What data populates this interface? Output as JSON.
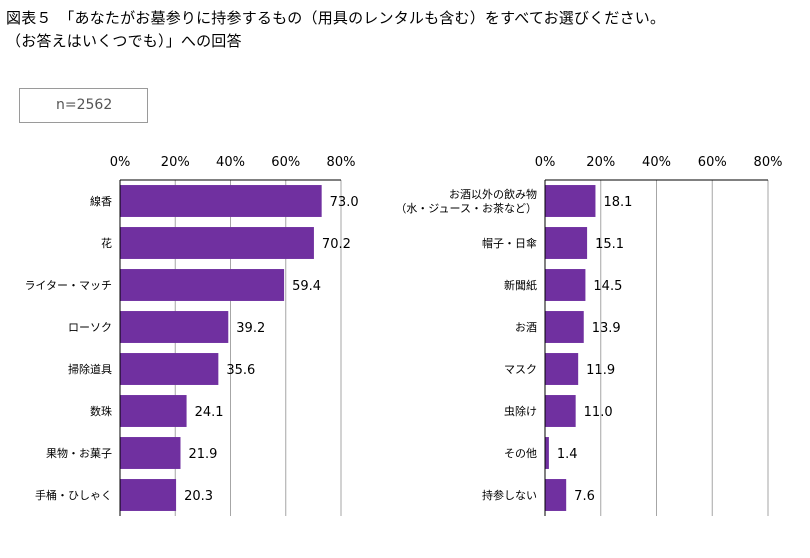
{
  "title": {
    "line1": "図表５　「あなたがお墓参りに持参するもの（用具のレンタルも含む）をすべてお選びください。",
    "line2": "（お答えはいくつでも）」への回答"
  },
  "sample": {
    "label": "n=2562"
  },
  "colors": {
    "bar": "#7030A0",
    "grid": "#a6a6a6",
    "axis": "#000000"
  },
  "chart_data": [
    {
      "type": "bar",
      "orientation": "horizontal",
      "xlim": [
        0,
        80
      ],
      "ticks": [
        "0%",
        "20%",
        "40%",
        "60%",
        "80%"
      ],
      "tick_values": [
        0,
        20,
        40,
        60,
        80
      ],
      "categories": [
        [
          "線香"
        ],
        [
          "花"
        ],
        [
          "ライター・マッチ"
        ],
        [
          "ローソク"
        ],
        [
          "掃除道具"
        ],
        [
          "数珠"
        ],
        [
          "果物・お菓子"
        ],
        [
          "手桶・ひしゃく"
        ]
      ],
      "values": [
        73.0,
        70.2,
        59.4,
        39.2,
        35.6,
        24.1,
        21.9,
        20.3
      ],
      "labels": [
        "73.0",
        "70.2",
        "59.4",
        "39.2",
        "35.6",
        "24.1",
        "21.9",
        "20.3"
      ]
    },
    {
      "type": "bar",
      "orientation": "horizontal",
      "xlim": [
        0,
        80
      ],
      "ticks": [
        "0%",
        "20%",
        "40%",
        "60%",
        "80%"
      ],
      "tick_values": [
        0,
        20,
        40,
        60,
        80
      ],
      "categories": [
        [
          "お酒以外の飲み物",
          "（水・ジュース・お茶など）"
        ],
        [
          "帽子・日傘"
        ],
        [
          "新聞紙"
        ],
        [
          "お酒"
        ],
        [
          "マスク"
        ],
        [
          "虫除け"
        ],
        [
          "その他"
        ],
        [
          "持参しない"
        ]
      ],
      "values": [
        18.1,
        15.1,
        14.5,
        13.9,
        11.9,
        11.0,
        1.4,
        7.6
      ],
      "labels": [
        "18.1",
        "15.1",
        "14.5",
        "13.9",
        "11.9",
        "11.0",
        "1.4",
        "7.6"
      ]
    }
  ]
}
